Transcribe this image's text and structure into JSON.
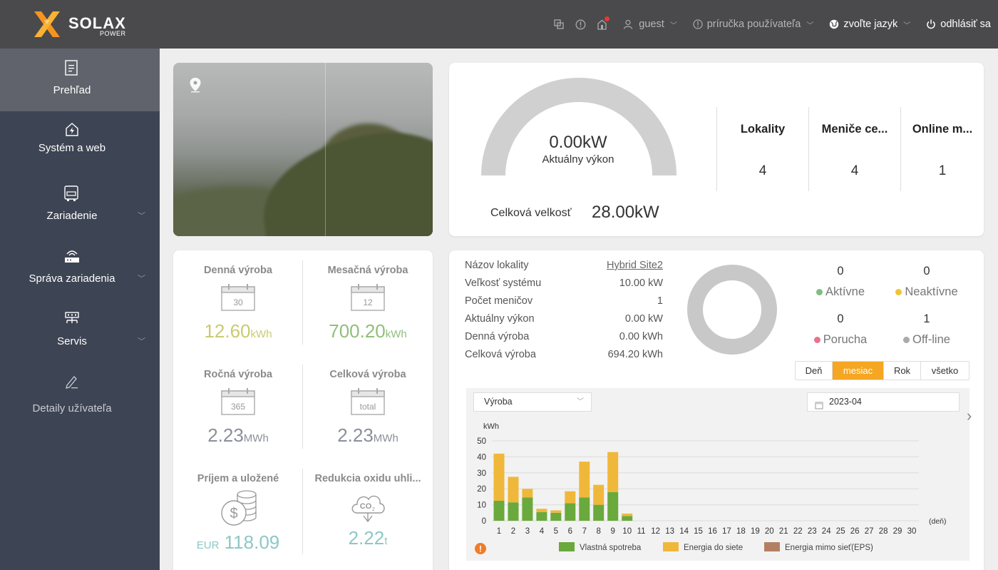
{
  "header": {
    "brand": "SOLAX",
    "brand_sub": "POWER",
    "user": "guest",
    "manual": "príručka používateľa",
    "language": "zvoľte jazyk",
    "logout": "odhlásiť sa",
    "icons": [
      "screenshot-icon",
      "info-icon",
      "notification-icon"
    ]
  },
  "sidebar": {
    "items": [
      {
        "label": "Prehľad",
        "icon": "document-icon",
        "active": true
      },
      {
        "label": "Systém a web",
        "icon": "home-icon"
      },
      {
        "label": "Zariadenie",
        "icon": "inverter-icon",
        "expandable": true
      },
      {
        "label": "Správa zariadenia",
        "icon": "router-icon",
        "expandable": true
      },
      {
        "label": "Servis",
        "icon": "network-icon",
        "expandable": true
      },
      {
        "label": "Detaily užívateľa",
        "icon": "pencil-icon"
      }
    ]
  },
  "power": {
    "current_value": "0.00kW",
    "current_label": "Aktuálny výkon",
    "current_fraction": 0,
    "total_label": "Celková velkosť",
    "total_value": "28.00kW"
  },
  "summary": [
    {
      "label": "Lokality",
      "value": "4"
    },
    {
      "label": "Meniče ce...",
      "value": "4"
    },
    {
      "label": "Online m...",
      "value": "1"
    }
  ],
  "production": {
    "daily": {
      "title": "Denná výroba",
      "cal": "30",
      "value": "12.60",
      "unit": "kWh",
      "color": "#c9cb72"
    },
    "monthly": {
      "title": "Mesačná výroba",
      "cal": "12",
      "value": "700.20",
      "unit": "kWh",
      "color": "#8fbf7a"
    },
    "yearly": {
      "title": "Ročná výroba",
      "cal": "365",
      "value": "2.23",
      "unit": "MWh",
      "color": "#8b8f9b"
    },
    "total": {
      "title": "Celková výroba",
      "cal": "total",
      "value": "2.23",
      "unit": "MWh",
      "color": "#8b8f9b"
    },
    "income": {
      "title": "Príjem a uložené",
      "prefix": "EUR",
      "value": "118.09",
      "color": "#8ec7c7"
    },
    "co2": {
      "title": "Redukcia oxidu uhli...",
      "value": "2.22",
      "unit": "t",
      "color": "#8ec7c7"
    }
  },
  "site": {
    "rows": [
      {
        "label": "Názov lokality",
        "value": "Hybrid Site2",
        "link": true
      },
      {
        "label": "Veľkosť systému",
        "value": "10.00 kW"
      },
      {
        "label": "Počet meničov",
        "value": "1"
      },
      {
        "label": "Aktuálny výkon",
        "value": "0.00 kW"
      },
      {
        "label": "Denná výroba",
        "value": "0.00 kWh"
      },
      {
        "label": "Celková výroba",
        "value": "694.20 kWh"
      }
    ],
    "status": [
      {
        "count": "0",
        "label": "Aktívne",
        "color": "#7dbf7d"
      },
      {
        "count": "0",
        "label": "Neaktívne",
        "color": "#f0c435"
      },
      {
        "count": "0",
        "label": "Porucha",
        "color": "#e8738a"
      },
      {
        "count": "1",
        "label": "Off-line",
        "color": "#aaaaaa"
      }
    ],
    "tabs": [
      {
        "label": "Deň",
        "active": false
      },
      {
        "label": "mesiac",
        "active": true
      },
      {
        "label": "Rok",
        "active": false
      },
      {
        "label": "všetko",
        "active": false
      }
    ],
    "select_value": "Výroba",
    "date_value": "2023-04"
  },
  "chart_data": {
    "type": "bar",
    "stacked": true,
    "ylabel": "kWh",
    "xlabel": "(deň)",
    "ylim": [
      0,
      50
    ],
    "yticks": [
      0,
      10,
      20,
      30,
      40,
      50
    ],
    "categories": [
      "1",
      "2",
      "3",
      "4",
      "5",
      "6",
      "7",
      "8",
      "9",
      "10",
      "11",
      "12",
      "13",
      "14",
      "15",
      "16",
      "17",
      "18",
      "19",
      "20",
      "21",
      "22",
      "23",
      "24",
      "25",
      "26",
      "27",
      "28",
      "29",
      "30"
    ],
    "series": [
      {
        "name": "Vlastná spotreba",
        "color": "#6aa93c",
        "values": [
          12.5,
          11.5,
          14.5,
          5.5,
          5,
          11,
          14.5,
          10,
          18,
          3,
          0,
          0,
          0,
          0,
          0,
          0,
          0,
          0,
          0,
          0,
          0,
          0,
          0,
          0,
          0,
          0,
          0,
          0,
          0,
          0
        ]
      },
      {
        "name": "Energia do siete",
        "color": "#f0b83a",
        "values": [
          29.5,
          16,
          5.5,
          2,
          1.5,
          7.5,
          22.5,
          12.5,
          25,
          1.5,
          0,
          0,
          0,
          0,
          0,
          0,
          0,
          0,
          0,
          0,
          0,
          0,
          0,
          0,
          0,
          0,
          0,
          0,
          0,
          0
        ]
      },
      {
        "name": "Energia mimo sieť(EPS)",
        "color": "#b37f63",
        "values": [
          0,
          0,
          0,
          0,
          0,
          0,
          0,
          0,
          0,
          0,
          0,
          0,
          0,
          0,
          0,
          0,
          0,
          0,
          0,
          0,
          0,
          0,
          0,
          0,
          0,
          0,
          0,
          0,
          0,
          0
        ]
      }
    ]
  }
}
